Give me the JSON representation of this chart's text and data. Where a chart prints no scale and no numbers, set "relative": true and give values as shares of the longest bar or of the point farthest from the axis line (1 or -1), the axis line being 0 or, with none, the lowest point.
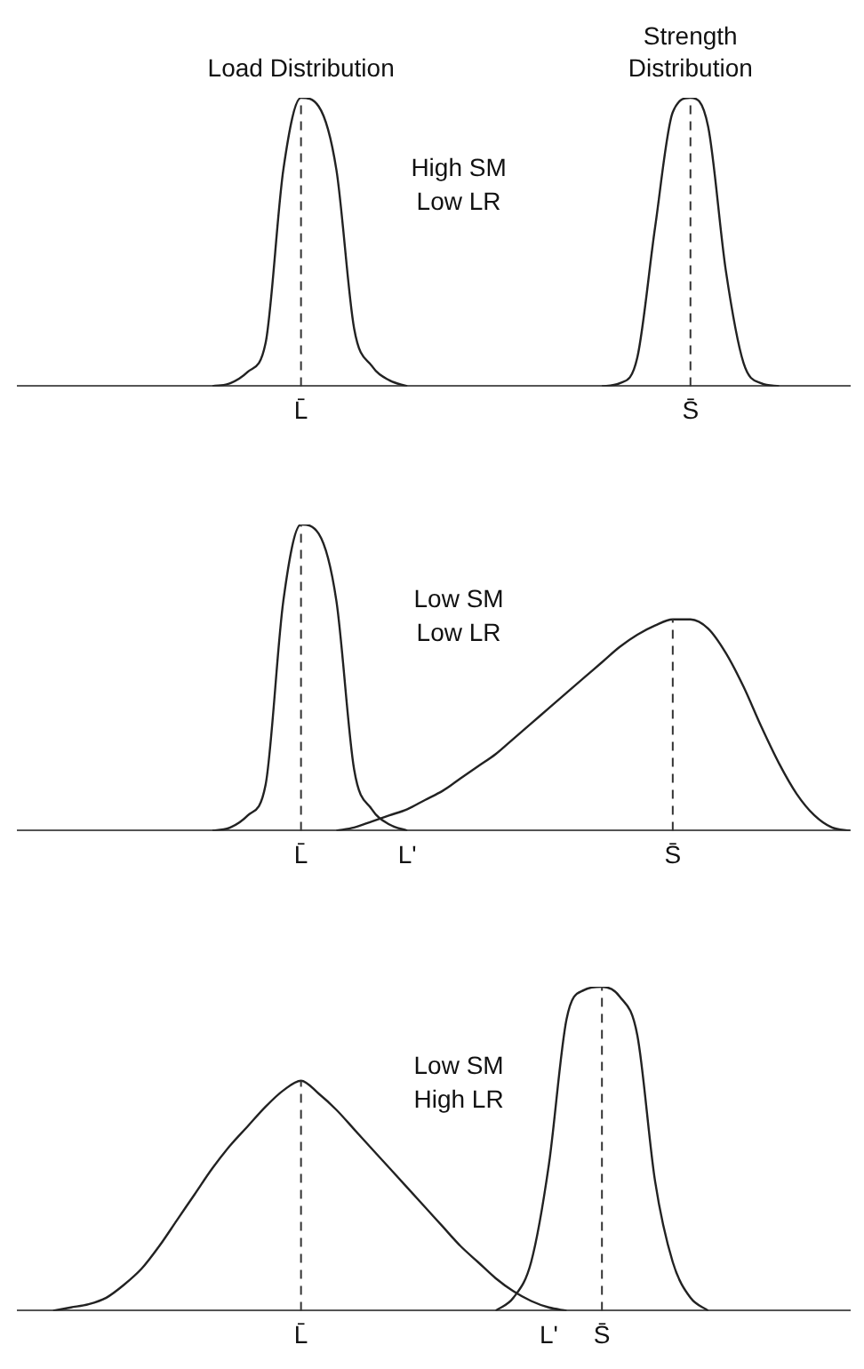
{
  "chart_data": [
    {
      "type": "line",
      "relative": true,
      "legend": false,
      "grid": false,
      "marker": "none",
      "line_style": "solid",
      "categories": [
        null,
        null,
        null,
        null,
        null,
        null,
        null,
        null,
        null,
        null,
        null,
        null,
        null,
        null,
        null,
        null,
        "L̄",
        null,
        null,
        null,
        null,
        null,
        null,
        null,
        null,
        null,
        null,
        null,
        null,
        null,
        null,
        null,
        null,
        null,
        null,
        null,
        null,
        null,
        "S̄",
        null,
        null,
        null,
        null,
        null,
        null,
        null,
        null,
        null
      ],
      "series": [
        {
          "name": "Load Distribution",
          "color": "#222222",
          "values": [
            null,
            null,
            null,
            null,
            null,
            null,
            null,
            null,
            null,
            null,
            null,
            0,
            0.01,
            0.05,
            0.15,
            0.75,
            1,
            0.97,
            0.75,
            0.2,
            0.07,
            0.02,
            0,
            null,
            null,
            null,
            null,
            null,
            null,
            null,
            null,
            null,
            null,
            null,
            null,
            null,
            null,
            null,
            null,
            null,
            null,
            null,
            null,
            null,
            null,
            null,
            null,
            null
          ]
        },
        {
          "name": "Strength Distribution",
          "color": "#222222",
          "values": [
            null,
            null,
            null,
            null,
            null,
            null,
            null,
            null,
            null,
            null,
            null,
            null,
            null,
            null,
            null,
            null,
            null,
            null,
            null,
            null,
            null,
            null,
            null,
            null,
            null,
            null,
            null,
            null,
            null,
            null,
            null,
            null,
            null,
            0,
            0.01,
            0.1,
            0.55,
            0.95,
            1,
            0.9,
            0.4,
            0.08,
            0.01,
            0,
            null,
            null,
            null,
            null
          ]
        }
      ],
      "ref_lines": [
        {
          "axis": "x",
          "value": "L̄",
          "line_style": "dashed"
        },
        {
          "axis": "x",
          "value": "S̄",
          "line_style": "dashed"
        }
      ],
      "annotations": [
        "High SM\nLow LR"
      ]
    },
    {
      "type": "line",
      "relative": true,
      "legend": false,
      "grid": false,
      "marker": "none",
      "line_style": "solid",
      "categories": [
        null,
        null,
        null,
        null,
        null,
        null,
        null,
        null,
        null,
        null,
        null,
        null,
        null,
        null,
        null,
        null,
        "L̄",
        null,
        null,
        null,
        null,
        null,
        "L'",
        null,
        null,
        null,
        null,
        null,
        null,
        null,
        null,
        null,
        null,
        null,
        null,
        null,
        null,
        "S̄",
        null,
        null,
        null,
        null,
        null,
        null,
        null,
        null,
        null,
        null
      ],
      "series": [
        {
          "color": "#222222",
          "values": [
            null,
            null,
            null,
            null,
            null,
            null,
            null,
            null,
            null,
            null,
            null,
            0,
            0.01,
            0.05,
            0.15,
            0.75,
            1,
            0.97,
            0.75,
            0.2,
            0.07,
            0.02,
            0,
            null,
            null,
            null,
            null,
            null,
            null,
            null,
            null,
            null,
            null,
            null,
            null,
            null,
            null,
            null,
            null,
            null,
            null,
            null,
            null,
            null,
            null,
            null,
            null,
            null
          ]
        },
        {
          "color": "#222222",
          "values": [
            null,
            null,
            null,
            null,
            null,
            null,
            null,
            null,
            null,
            null,
            null,
            null,
            null,
            null,
            null,
            null,
            null,
            null,
            0,
            0.01,
            0.03,
            0.05,
            0.07,
            0.1,
            0.13,
            0.17,
            0.21,
            0.25,
            0.3,
            0.35,
            0.4,
            0.45,
            0.5,
            0.55,
            0.6,
            0.64,
            0.67,
            0.69,
            0.69,
            0.66,
            0.58,
            0.47,
            0.34,
            0.22,
            0.12,
            0.05,
            0.01,
            0
          ]
        }
      ],
      "ref_lines": [
        {
          "axis": "x",
          "value": "L̄",
          "line_style": "dashed"
        },
        {
          "axis": "x",
          "value": "S̄",
          "line_style": "dashed"
        }
      ],
      "annotations": [
        "Low SM\nLow LR"
      ]
    },
    {
      "type": "line",
      "relative": true,
      "legend": false,
      "grid": false,
      "marker": "none",
      "line_style": "solid",
      "categories": [
        null,
        null,
        null,
        null,
        null,
        null,
        null,
        null,
        null,
        null,
        null,
        null,
        null,
        null,
        null,
        null,
        "L̄",
        null,
        null,
        null,
        null,
        null,
        null,
        null,
        null,
        null,
        null,
        null,
        null,
        null,
        "L'",
        null,
        null,
        "S̄",
        null,
        null,
        null,
        null,
        null,
        null,
        null,
        null,
        null,
        null,
        null,
        null,
        null,
        null
      ],
      "series": [
        {
          "color": "#222222",
          "values": [
            null,
            null,
            0,
            0.01,
            0.02,
            0.04,
            0.08,
            0.13,
            0.2,
            0.28,
            0.36,
            0.44,
            0.51,
            0.57,
            0.63,
            0.68,
            0.71,
            0.67,
            0.62,
            0.56,
            0.5,
            0.44,
            0.38,
            0.32,
            0.26,
            0.2,
            0.15,
            0.1,
            0.06,
            0.03,
            0.01,
            0,
            null,
            null,
            null,
            null,
            null,
            null,
            null,
            null,
            null,
            null,
            null,
            null,
            null,
            null,
            null,
            null
          ]
        },
        {
          "color": "#222222",
          "values": [
            null,
            null,
            null,
            null,
            null,
            null,
            null,
            null,
            null,
            null,
            null,
            null,
            null,
            null,
            null,
            null,
            null,
            null,
            null,
            null,
            null,
            null,
            null,
            null,
            null,
            null,
            null,
            0,
            0.04,
            0.15,
            0.45,
            0.9,
            0.99,
            1,
            0.97,
            0.85,
            0.4,
            0.15,
            0.04,
            0,
            null,
            null,
            null,
            null,
            null,
            null,
            null,
            null
          ]
        }
      ],
      "ref_lines": [
        {
          "axis": "x",
          "value": "L̄",
          "line_style": "dashed"
        },
        {
          "axis": "x",
          "value": "S̄",
          "line_style": "dashed"
        }
      ],
      "annotations": [
        "Low SM\nHigh LR"
      ]
    }
  ]
}
